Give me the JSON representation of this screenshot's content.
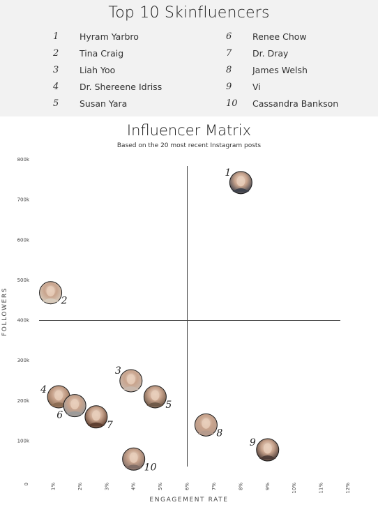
{
  "top10": {
    "title": "Top 10 Skinfluencers",
    "left": [
      {
        "rank": "1",
        "name": "Hyram Yarbro"
      },
      {
        "rank": "2",
        "name": "Tina Craig"
      },
      {
        "rank": "3",
        "name": "Liah Yoo"
      },
      {
        "rank": "4",
        "name": "Dr. Shereene Idriss"
      },
      {
        "rank": "5",
        "name": "Susan Yara"
      }
    ],
    "right": [
      {
        "rank": "6",
        "name": "Renee Chow"
      },
      {
        "rank": "7",
        "name": "Dr. Dray"
      },
      {
        "rank": "8",
        "name": "James Welsh"
      },
      {
        "rank": "9",
        "name": "Vi"
      },
      {
        "rank": "10",
        "name": "Cassandra Bankson"
      }
    ]
  },
  "chart_data": {
    "type": "scatter",
    "title": "Influencer Matrix",
    "subtitle": "Based on the 20 most recent Instagram posts",
    "xlabel": "ENGAGEMENT RATE",
    "ylabel": "FOLLOWERS",
    "xlim": [
      0,
      12
    ],
    "ylim": [
      0,
      800
    ],
    "x_ticks": [
      {
        "value": 0,
        "label": "0"
      },
      {
        "value": 1,
        "label": "1%"
      },
      {
        "value": 2,
        "label": "2%"
      },
      {
        "value": 3,
        "label": "3%"
      },
      {
        "value": 4,
        "label": "4%"
      },
      {
        "value": 5,
        "label": "5%"
      },
      {
        "value": 6,
        "label": "6%"
      },
      {
        "value": 7,
        "label": "7%"
      },
      {
        "value": 8,
        "label": "8%"
      },
      {
        "value": 9,
        "label": "9%"
      },
      {
        "value": 10,
        "label": "10%"
      },
      {
        "value": 11,
        "label": "11%"
      },
      {
        "value": 12,
        "label": "12%"
      }
    ],
    "y_ticks": [
      {
        "value": 100,
        "label": "100k"
      },
      {
        "value": 200,
        "label": "200k"
      },
      {
        "value": 300,
        "label": "300k"
      },
      {
        "value": 400,
        "label": "400k"
      },
      {
        "value": 500,
        "label": "500k"
      },
      {
        "value": 600,
        "label": "600k"
      },
      {
        "value": 700,
        "label": "700k"
      },
      {
        "value": 800,
        "label": "800k"
      }
    ],
    "quadrant_lines": {
      "x": 6,
      "y": 400
    },
    "points": [
      {
        "rank": "1",
        "name": "Hyram Yarbro",
        "x": 8.0,
        "y": 743,
        "label_side": "top-left",
        "color": "#3a3f4a"
      },
      {
        "rank": "2",
        "name": "Tina Craig",
        "x": 0.9,
        "y": 469,
        "label_side": "right",
        "color": "#d8cdbf"
      },
      {
        "rank": "3",
        "name": "Liah Yoo",
        "x": 3.9,
        "y": 250,
        "label_side": "top-left",
        "color": "#c9b9ae"
      },
      {
        "rank": "4",
        "name": "Dr. Shereene Idriss",
        "x": 1.2,
        "y": 210,
        "label_side": "left",
        "color": "#8a6a52"
      },
      {
        "rank": "5",
        "name": "Susan Yara",
        "x": 4.8,
        "y": 210,
        "label_side": "right",
        "color": "#6b5646"
      },
      {
        "rank": "6",
        "name": "Renee Chow",
        "x": 1.8,
        "y": 188,
        "label_side": "left",
        "color": "#9a9a9a"
      },
      {
        "rank": "7",
        "name": "Dr. Dray",
        "x": 2.6,
        "y": 160,
        "label_side": "right",
        "color": "#5a3b2c"
      },
      {
        "rank": "8",
        "name": "James Welsh",
        "x": 6.7,
        "y": 140,
        "label_side": "right",
        "color": "#b59a8c"
      },
      {
        "rank": "9",
        "name": "Vi",
        "x": 9.0,
        "y": 78,
        "label_side": "left",
        "color": "#4a3a35"
      },
      {
        "rank": "10",
        "name": "Cassandra Bankson",
        "x": 4.0,
        "y": 55,
        "label_side": "right",
        "color": "#7d6a64"
      }
    ]
  }
}
